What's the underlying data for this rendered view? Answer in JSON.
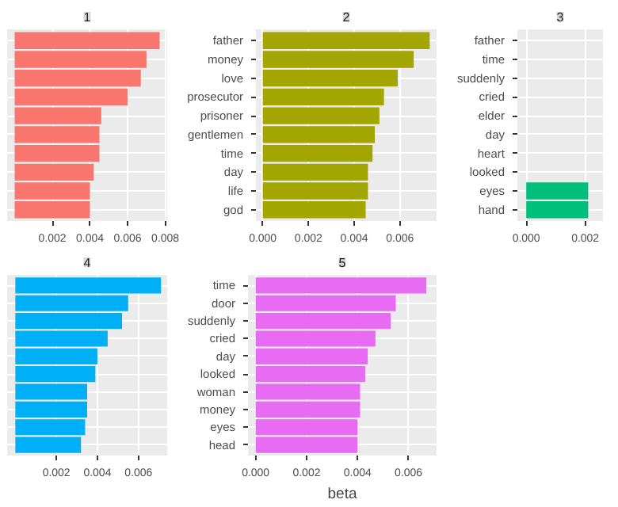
{
  "chart_data": [
    {
      "type": "bar",
      "title": "1",
      "orientation": "horizontal",
      "categories": [
        null,
        null,
        null,
        null,
        null,
        null,
        null,
        null,
        null,
        null
      ],
      "values": [
        0.0077,
        0.007,
        0.0067,
        0.006,
        0.0046,
        0.0045,
        0.0045,
        0.0042,
        0.004,
        0.004
      ],
      "color": "#f8766d",
      "xlim": [
        -0.0004,
        0.0081
      ],
      "xticks": [
        {
          "value": 0.002,
          "label": "0.002"
        },
        {
          "value": 0.004,
          "label": "0.004"
        },
        {
          "value": 0.006,
          "label": "0.006"
        },
        {
          "value": 0.008,
          "label": "0.008"
        }
      ],
      "grid": true,
      "tick_labels": "x"
    },
    {
      "type": "bar",
      "title": "2",
      "orientation": "horizontal",
      "categories": [
        "father",
        "money",
        "love",
        "prosecutor",
        "prisoner",
        "gentlemen",
        "time",
        "day",
        "life",
        "god"
      ],
      "values": [
        0.0073,
        0.0066,
        0.0059,
        0.0053,
        0.0051,
        0.0049,
        0.0048,
        0.0046,
        0.0046,
        0.0045
      ],
      "color": "#a3a500",
      "xlim": [
        -0.0003,
        0.0076
      ],
      "xticks": [
        {
          "value": 0,
          "label": "0.000"
        },
        {
          "value": 0.002,
          "label": "0.002"
        },
        {
          "value": 0.004,
          "label": "0.004"
        },
        {
          "value": 0.006,
          "label": "0.006"
        }
      ],
      "grid": true
    },
    {
      "type": "bar",
      "title": "3",
      "orientation": "horizontal",
      "categories": [
        "father",
        "time",
        "suddenly",
        "cried",
        "elder",
        "day",
        "heart",
        "looked",
        "eyes",
        "hand"
      ],
      "values": [
        null,
        null,
        null,
        null,
        null,
        null,
        null,
        null,
        0.0021,
        0.0021
      ],
      "color": "#00bf7d",
      "xlim": [
        -0.0003,
        0.0026
      ],
      "xticks": [
        {
          "value": 0,
          "label": "0.000"
        },
        {
          "value": 0.002,
          "label": "0.002"
        }
      ],
      "grid": true
    },
    {
      "type": "bar",
      "title": "4",
      "orientation": "horizontal",
      "categories": [
        null,
        null,
        null,
        null,
        null,
        null,
        null,
        null,
        null,
        null
      ],
      "values": [
        0.0071,
        0.0055,
        0.0052,
        0.0045,
        0.004,
        0.0039,
        0.0035,
        0.0035,
        0.0034,
        0.0032
      ],
      "color": "#00b0f6",
      "xlim": [
        -0.0004,
        0.0074
      ],
      "xticks": [
        {
          "value": 0.002,
          "label": "0.002"
        },
        {
          "value": 0.004,
          "label": "0.004"
        },
        {
          "value": 0.006,
          "label": "0.006"
        }
      ],
      "grid": true,
      "tick_labels": "x"
    },
    {
      "type": "bar",
      "title": "5",
      "orientation": "horizontal",
      "xlabel": "beta",
      "categories": [
        "time",
        "door",
        "suddenly",
        "cried",
        "day",
        "looked",
        "woman",
        "money",
        "eyes",
        "head"
      ],
      "values": [
        0.0067,
        0.0055,
        0.0053,
        0.0047,
        0.0044,
        0.0043,
        0.0041,
        0.0041,
        0.004,
        0.004
      ],
      "color": "#e76bf3",
      "xlim": [
        -0.0003,
        0.0071
      ],
      "xticks": [
        {
          "value": 0,
          "label": "0.000"
        },
        {
          "value": 0.002,
          "label": "0.002"
        },
        {
          "value": 0.004,
          "label": "0.004"
        },
        {
          "value": 0.006,
          "label": "0.006"
        }
      ],
      "grid": true
    }
  ]
}
